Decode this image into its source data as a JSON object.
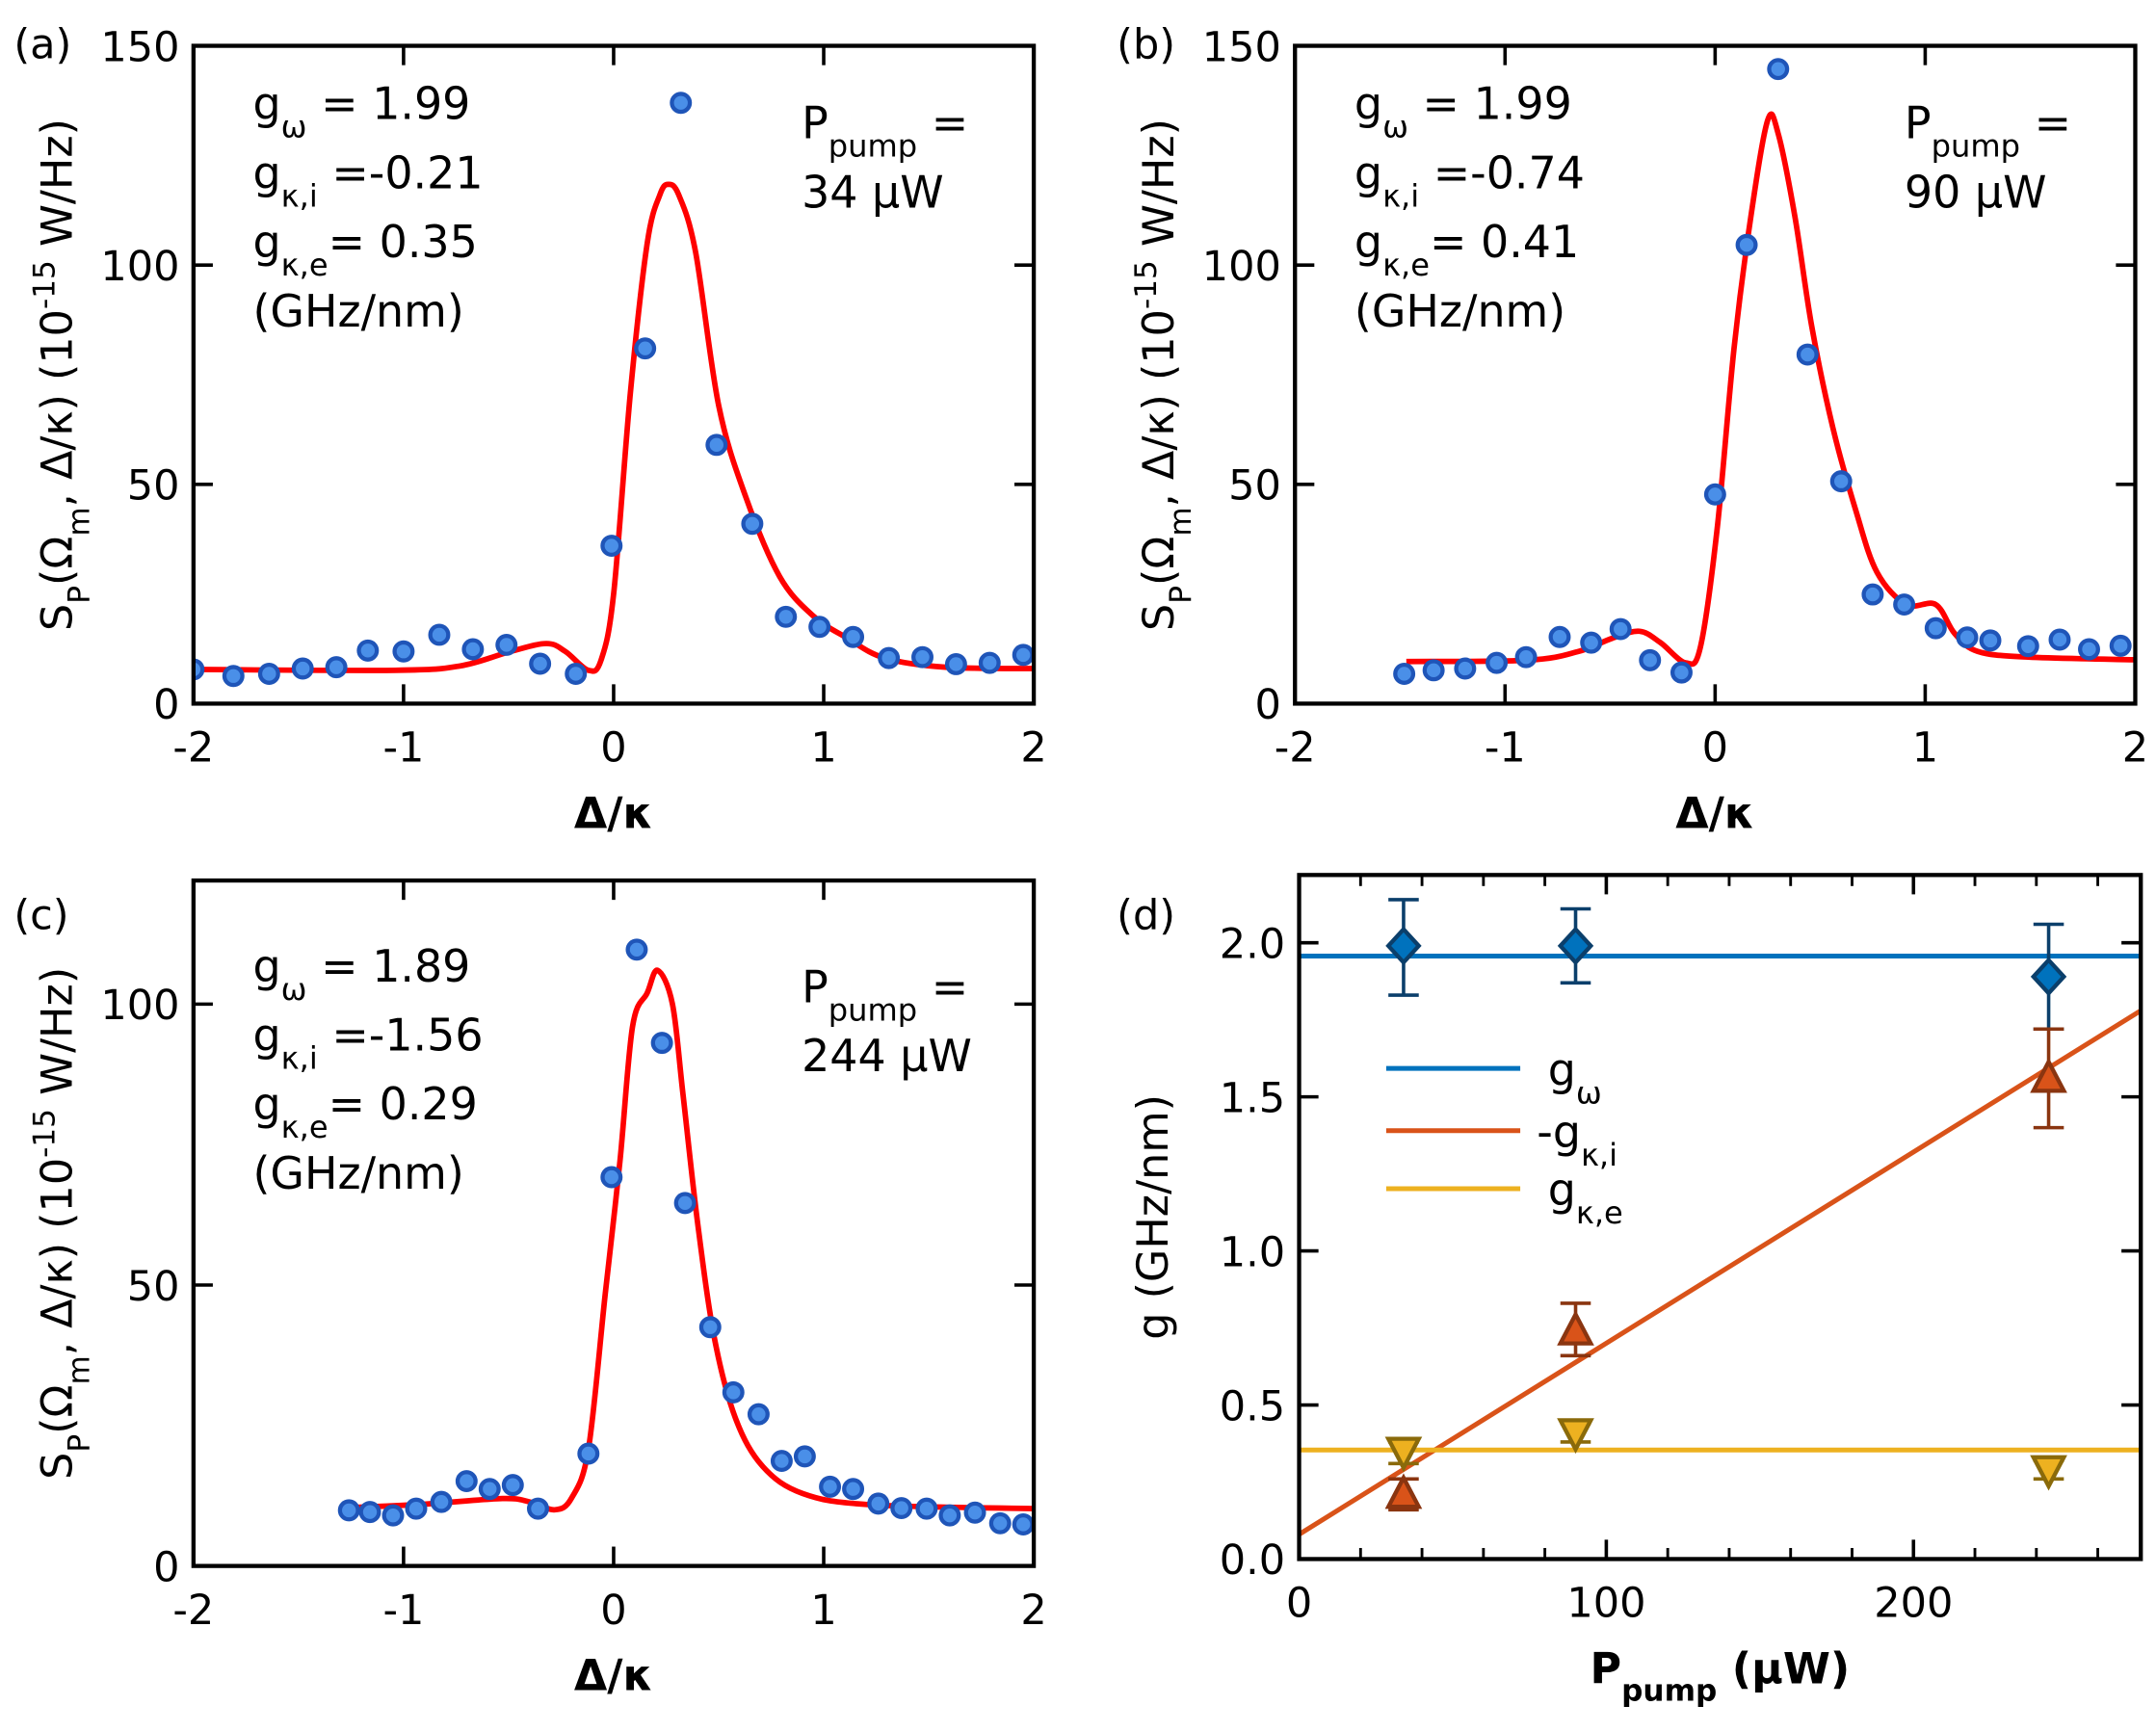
{
  "colors": {
    "data_fill": "#4a8fe8",
    "data_stroke": "#1f55b8",
    "fit": "#ff0000",
    "g_omega": "#0072BD",
    "g_omega_marker_stroke": "#0b3f6b",
    "g_kappa_i": "#D95319",
    "g_kappa_i_marker_stroke": "#8a3510",
    "g_kappa_e": "#EDB120",
    "g_kappa_e_marker_stroke": "#8a6a0a"
  },
  "chart_data": [
    {
      "panel": "(a)",
      "type": "scatter",
      "xlim": [
        -2,
        2
      ],
      "ylim": [
        0,
        150
      ],
      "xticks": [
        "-2",
        "-1",
        "0",
        "1",
        "2"
      ],
      "yticks": [
        "0",
        "50",
        "100",
        "150"
      ],
      "xlabel": [
        {
          "t": "Δ/κ"
        }
      ],
      "ylabel": [
        {
          "t": "S"
        },
        {
          "t": "P",
          "s": "sub"
        },
        {
          "t": "(Ω"
        },
        {
          "t": "m",
          "s": "sub"
        },
        {
          "t": ", Δ/κ) (10"
        },
        {
          "t": "-15",
          "s": "super"
        },
        {
          "t": " W/Hz)"
        }
      ],
      "params": [
        [
          {
            "t": "g"
          },
          {
            "t": "ω",
            "s": "sub"
          },
          {
            "t": "  =  1.99"
          }
        ],
        [
          {
            "t": "g"
          },
          {
            "t": "κ,i",
            "s": "sub"
          },
          {
            "t": " =-0.21"
          }
        ],
        [
          {
            "t": "g"
          },
          {
            "t": "κ,e",
            "s": "sub"
          },
          {
            "t": "=  0.35"
          }
        ],
        [
          {
            "t": "(GHz/nm)"
          }
        ]
      ],
      "pump": [
        [
          {
            "t": "P"
          },
          {
            "t": "pump",
            "s": "sub"
          },
          {
            "t": " ="
          }
        ],
        [
          {
            "t": "34 μW"
          }
        ]
      ],
      "series": [
        {
          "name": "measured",
          "x": [
            -2.0,
            -1.81,
            -1.64,
            -1.48,
            -1.32,
            -1.17,
            -1.0,
            -0.83,
            -0.67,
            -0.51,
            -0.35,
            -0.18,
            -0.01,
            0.15,
            0.32,
            0.49,
            0.66,
            0.82,
            0.98,
            1.14,
            1.31,
            1.47,
            1.63,
            1.79,
            1.95
          ],
          "y": [
            7.8,
            6.3,
            6.8,
            8.0,
            8.3,
            12.1,
            11.9,
            15.7,
            12.4,
            13.4,
            9.1,
            6.8,
            36,
            81,
            137,
            59,
            41,
            19.8,
            17.5,
            15.2,
            10.4,
            10.6,
            9.0,
            9.3,
            11.1
          ]
        },
        {
          "name": "fit",
          "x": [
            -2.0,
            -1.04,
            -0.73,
            -0.49,
            -0.32,
            -0.23,
            -0.12,
            -0.06,
            0.0,
            0.08,
            0.16,
            0.22,
            0.26,
            0.31,
            0.39,
            0.5,
            0.63,
            0.79,
            0.95,
            1.11,
            1.29,
            1.58,
            2.0
          ],
          "y": [
            7.8,
            7.6,
            8.6,
            11.9,
            13.7,
            11.9,
            7.6,
            9.9,
            25,
            71,
            105,
            116,
            118.4,
            116,
            103,
            68,
            47,
            29,
            20,
            15,
            10.4,
            8.3,
            8.0
          ]
        }
      ]
    },
    {
      "panel": "(b)",
      "type": "scatter",
      "xlim": [
        -2,
        2
      ],
      "ylim": [
        0,
        150
      ],
      "xticks": [
        "-2",
        "-1",
        "0",
        "1",
        "2"
      ],
      "yticks": [
        "0",
        "50",
        "100",
        "150"
      ],
      "xlabel": [
        {
          "t": "Δ/κ"
        }
      ],
      "ylabel": [
        {
          "t": "S"
        },
        {
          "t": "P",
          "s": "sub"
        },
        {
          "t": "(Ω"
        },
        {
          "t": "m",
          "s": "sub"
        },
        {
          "t": ", Δ/κ) (10"
        },
        {
          "t": "-15",
          "s": "super"
        },
        {
          "t": " W/Hz)"
        }
      ],
      "params": [
        [
          {
            "t": "g"
          },
          {
            "t": "ω",
            "s": "sub"
          },
          {
            "t": "  =  1.99"
          }
        ],
        [
          {
            "t": "g"
          },
          {
            "t": "κ,i",
            "s": "sub"
          },
          {
            "t": " =-0.74"
          }
        ],
        [
          {
            "t": "g"
          },
          {
            "t": "κ,e",
            "s": "sub"
          },
          {
            "t": "=  0.41"
          }
        ],
        [
          {
            "t": "(GHz/nm)"
          }
        ]
      ],
      "pump": [
        [
          {
            "t": "P"
          },
          {
            "t": "pump",
            "s": "sub"
          },
          {
            "t": " ="
          }
        ],
        [
          {
            "t": "90 μW"
          }
        ]
      ],
      "series": [
        {
          "name": "measured",
          "x": [
            -1.48,
            -1.34,
            -1.19,
            -1.04,
            -0.9,
            -0.74,
            -0.59,
            -0.45,
            -0.31,
            -0.16,
            0.0,
            0.15,
            0.3,
            0.44,
            0.6,
            0.75,
            0.9,
            1.05,
            1.2,
            1.31,
            1.49,
            1.64,
            1.78,
            1.93
          ],
          "y": [
            6.8,
            7.6,
            8.0,
            9.3,
            10.6,
            15.2,
            13.9,
            17.0,
            9.9,
            7.1,
            47.7,
            104.6,
            144.7,
            79.6,
            50.7,
            24.9,
            22.6,
            17.2,
            15.1,
            14.4,
            13.1,
            14.6,
            12.4,
            13.2
          ]
        },
        {
          "name": "fit",
          "x": [
            -1.47,
            -0.89,
            -0.65,
            -0.49,
            -0.36,
            -0.26,
            -0.14,
            -0.07,
            0.01,
            0.09,
            0.17,
            0.25,
            0.3,
            0.38,
            0.46,
            0.56,
            0.67,
            0.77,
            0.91,
            1.05,
            1.14,
            1.25,
            1.49,
            2.0
          ],
          "y": [
            9.6,
            9.9,
            11.9,
            14.9,
            16.5,
            13.9,
            9.3,
            12.9,
            40,
            81,
            111,
            133,
            130,
            111,
            86,
            63,
            44,
            30,
            22.6,
            22.6,
            16,
            11.9,
            10.6,
            10
          ]
        }
      ]
    },
    {
      "panel": "(c)",
      "type": "scatter",
      "xlim": [
        -2,
        2
      ],
      "ylim": [
        0,
        122
      ],
      "xticks": [
        "-2",
        "-1",
        "0",
        "1",
        "2"
      ],
      "yticks": [
        "0",
        "50",
        "100"
      ],
      "xlabel": [
        {
          "t": "Δ/κ"
        }
      ],
      "ylabel": [
        {
          "t": "S"
        },
        {
          "t": "P",
          "s": "sub"
        },
        {
          "t": "(Ω"
        },
        {
          "t": "m",
          "s": "sub"
        },
        {
          "t": ", Δ/κ) (10"
        },
        {
          "t": "-15",
          "s": "super"
        },
        {
          "t": " W/Hz)"
        }
      ],
      "params": [
        [
          {
            "t": "g"
          },
          {
            "t": "ω",
            "s": "sub"
          },
          {
            "t": "  =  1.89"
          }
        ],
        [
          {
            "t": "g"
          },
          {
            "t": "κ,i",
            "s": "sub"
          },
          {
            "t": " =-1.56"
          }
        ],
        [
          {
            "t": "g"
          },
          {
            "t": "κ,e",
            "s": "sub"
          },
          {
            "t": "=  0.29"
          }
        ],
        [
          {
            "t": "(GHz/nm)"
          }
        ]
      ],
      "pump": [
        [
          {
            "t": "P"
          },
          {
            "t": "pump",
            "s": "sub"
          },
          {
            "t": " ="
          }
        ],
        [
          {
            "t": "244 μW"
          }
        ]
      ],
      "series": [
        {
          "name": "measured",
          "x": [
            -1.26,
            -1.16,
            -1.05,
            -0.94,
            -0.82,
            -0.7,
            -0.59,
            -0.48,
            -0.36,
            -0.12,
            -0.01,
            0.11,
            0.23,
            0.34,
            0.46,
            0.57,
            0.69,
            0.8,
            0.91,
            1.03,
            1.14,
            1.26,
            1.37,
            1.49,
            1.6,
            1.72,
            1.84,
            1.95
          ],
          "y": [
            9.9,
            9.6,
            9.0,
            10.2,
            11.4,
            15.1,
            13.7,
            14.4,
            10.2,
            20.0,
            69.2,
            109.7,
            93.1,
            64.6,
            42.5,
            30.9,
            27.0,
            18.7,
            19.5,
            14.1,
            13.7,
            11.1,
            10.3,
            10.2,
            9.0,
            9.5,
            7.6,
            7.4
          ]
        },
        {
          "name": "fit",
          "x": [
            -1.25,
            -0.9,
            -0.53,
            -0.4,
            -0.28,
            -0.2,
            -0.12,
            -0.04,
            0.03,
            0.09,
            0.16,
            0.21,
            0.28,
            0.33,
            0.4,
            0.48,
            0.58,
            0.71,
            0.9,
            1.22,
            2.0
          ],
          "y": [
            10.4,
            11.0,
            12.0,
            11.4,
            10.0,
            12.1,
            20.8,
            48.4,
            72,
            96,
            102,
            106,
            100,
            84,
            61,
            40.5,
            26.3,
            17.7,
            12.9,
            10.9,
            10.2
          ]
        }
      ]
    },
    {
      "panel": "(d)",
      "type": "scatter",
      "xlim": [
        0,
        274
      ],
      "ylim": [
        0,
        2.22
      ],
      "xticks": [
        "0",
        "100",
        "200"
      ],
      "yticks": [
        "0.0",
        "0.5",
        "1.0",
        "1.5",
        "2.0"
      ],
      "xlabel": [
        {
          "t": "P"
        },
        {
          "t": "pump",
          "s": "sub"
        },
        {
          "t": " (μW)"
        }
      ],
      "ylabel": [
        {
          "t": "g (GHz/nm)"
        }
      ],
      "legend_position": "center-left",
      "series": [
        {
          "name": "g_omega",
          "legend": [
            {
              "t": "g"
            },
            {
              "t": "ω",
              "s": "sub"
            }
          ],
          "marker": "diamond",
          "x": [
            34,
            90,
            244
          ],
          "y": [
            1.99,
            1.99,
            1.89
          ],
          "err_low": [
            1.83,
            1.87,
            1.72
          ],
          "err_high": [
            2.14,
            2.11,
            2.06
          ],
          "fit_line": {
            "x": [
              0,
              274
            ],
            "y": [
              1.957,
              1.957
            ]
          }
        },
        {
          "name": "minus_g_kappa_i",
          "legend": [
            {
              "t": "-g"
            },
            {
              "t": "κ,i",
              "s": "sub"
            }
          ],
          "marker": "triangle-up",
          "x": [
            34,
            90,
            244
          ],
          "y": [
            0.21,
            0.74,
            1.56
          ],
          "err_low": [
            0.16,
            0.66,
            1.4
          ],
          "err_high": [
            0.26,
            0.83,
            1.72
          ],
          "fit_line": {
            "x": [
              0,
              274
            ],
            "y": [
              0.08,
              1.78
            ]
          }
        },
        {
          "name": "g_kappa_e",
          "legend": [
            {
              "t": "g"
            },
            {
              "t": "κ,e",
              "s": "sub"
            }
          ],
          "marker": "triangle-down",
          "x": [
            34,
            90,
            244
          ],
          "y": [
            0.35,
            0.41,
            0.29
          ],
          "err_low": [
            0.31,
            0.38,
            0.26
          ],
          "err_high": [
            0.38,
            0.44,
            0.32
          ],
          "fit_line": {
            "x": [
              0,
              274
            ],
            "y": [
              0.354,
              0.354
            ]
          }
        }
      ]
    }
  ]
}
